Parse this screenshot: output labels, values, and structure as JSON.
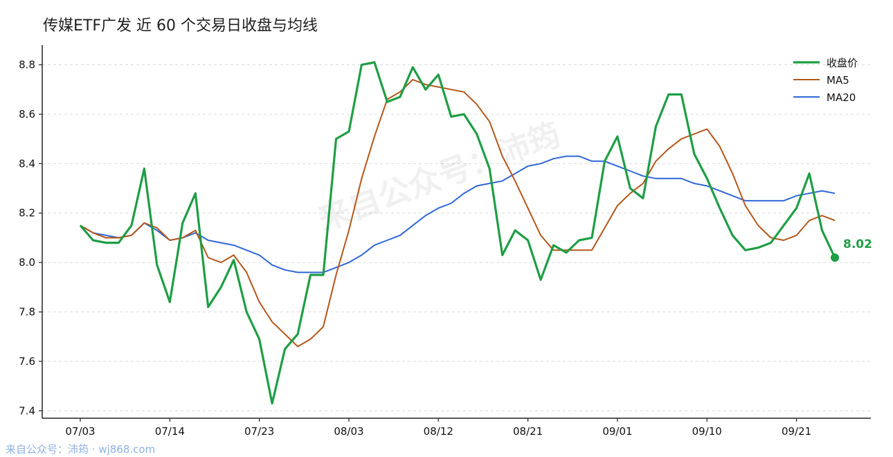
{
  "title": "传媒ETF广发 近 60 个交易日收盘与均线",
  "watermark_center": "来自公众号：沛筠",
  "footer": "来自公众号：沛筠 · wj868.com",
  "last_value_label": "8.02",
  "colors": {
    "close": "#1e9e45",
    "ma5": "#b5561a",
    "ma20": "#2f67d8",
    "grid": "#d9d9d9",
    "axis": "#222222"
  },
  "chart_data": {
    "type": "line",
    "xlabel": "",
    "ylabel": "",
    "ylim": [
      7.37,
      8.88
    ],
    "y_ticks": [
      7.4,
      7.6,
      7.8,
      8.0,
      8.2,
      8.4,
      8.6,
      8.8
    ],
    "x_tick_labels": [
      "07/03",
      "07/14",
      "07/23",
      "08/03",
      "08/12",
      "08/21",
      "09/01",
      "09/10",
      "09/21"
    ],
    "x_tick_index": [
      0,
      7,
      14,
      21,
      28,
      35,
      42,
      49,
      56
    ],
    "grid": "horizontal dashed",
    "legend_position": "top-right",
    "series": [
      {
        "name": "收盘价",
        "values": [
          8.15,
          8.09,
          8.08,
          8.08,
          8.15,
          8.38,
          7.99,
          7.84,
          8.16,
          8.28,
          7.82,
          7.9,
          8.01,
          7.8,
          7.69,
          7.43,
          7.65,
          7.71,
          7.95,
          7.95,
          8.5,
          8.53,
          8.8,
          8.81,
          8.65,
          8.67,
          8.79,
          8.7,
          8.76,
          8.59,
          8.6,
          8.52,
          8.38,
          8.03,
          8.13,
          8.09,
          7.93,
          8.07,
          8.04,
          8.09,
          8.1,
          8.41,
          8.51,
          8.3,
          8.26,
          8.55,
          8.68,
          8.68,
          8.44,
          8.34,
          8.22,
          8.11,
          8.05,
          8.06,
          8.08,
          8.15,
          8.22,
          8.36,
          8.13,
          8.02
        ]
      },
      {
        "name": "MA5",
        "values": [
          8.15,
          8.12,
          8.1,
          8.1,
          8.11,
          8.16,
          8.14,
          8.09,
          8.1,
          8.13,
          8.02,
          8.0,
          8.03,
          7.96,
          7.84,
          7.76,
          7.71,
          7.66,
          7.69,
          7.74,
          7.95,
          8.13,
          8.34,
          8.51,
          8.66,
          8.69,
          8.74,
          8.72,
          8.71,
          8.7,
          8.69,
          8.64,
          8.57,
          8.43,
          8.33,
          8.22,
          8.11,
          8.05,
          8.05,
          8.05,
          8.05,
          8.14,
          8.23,
          8.28,
          8.32,
          8.41,
          8.46,
          8.5,
          8.52,
          8.54,
          8.47,
          8.36,
          8.23,
          8.15,
          8.1,
          8.09,
          8.11,
          8.17,
          8.19,
          8.17
        ]
      },
      {
        "name": "MA20",
        "values": [
          8.15,
          8.12,
          8.11,
          8.1,
          8.11,
          8.16,
          8.13,
          8.09,
          8.1,
          8.12,
          8.09,
          8.08,
          8.07,
          8.05,
          8.03,
          7.99,
          7.97,
          7.96,
          7.96,
          7.96,
          7.98,
          8.0,
          8.03,
          8.07,
          8.09,
          8.11,
          8.15,
          8.19,
          8.22,
          8.24,
          8.28,
          8.31,
          8.32,
          8.33,
          8.36,
          8.39,
          8.4,
          8.42,
          8.43,
          8.43,
          8.41,
          8.41,
          8.39,
          8.37,
          8.35,
          8.34,
          8.34,
          8.34,
          8.32,
          8.31,
          8.29,
          8.27,
          8.25,
          8.25,
          8.25,
          8.25,
          8.27,
          8.28,
          8.29,
          8.28
        ]
      }
    ]
  }
}
